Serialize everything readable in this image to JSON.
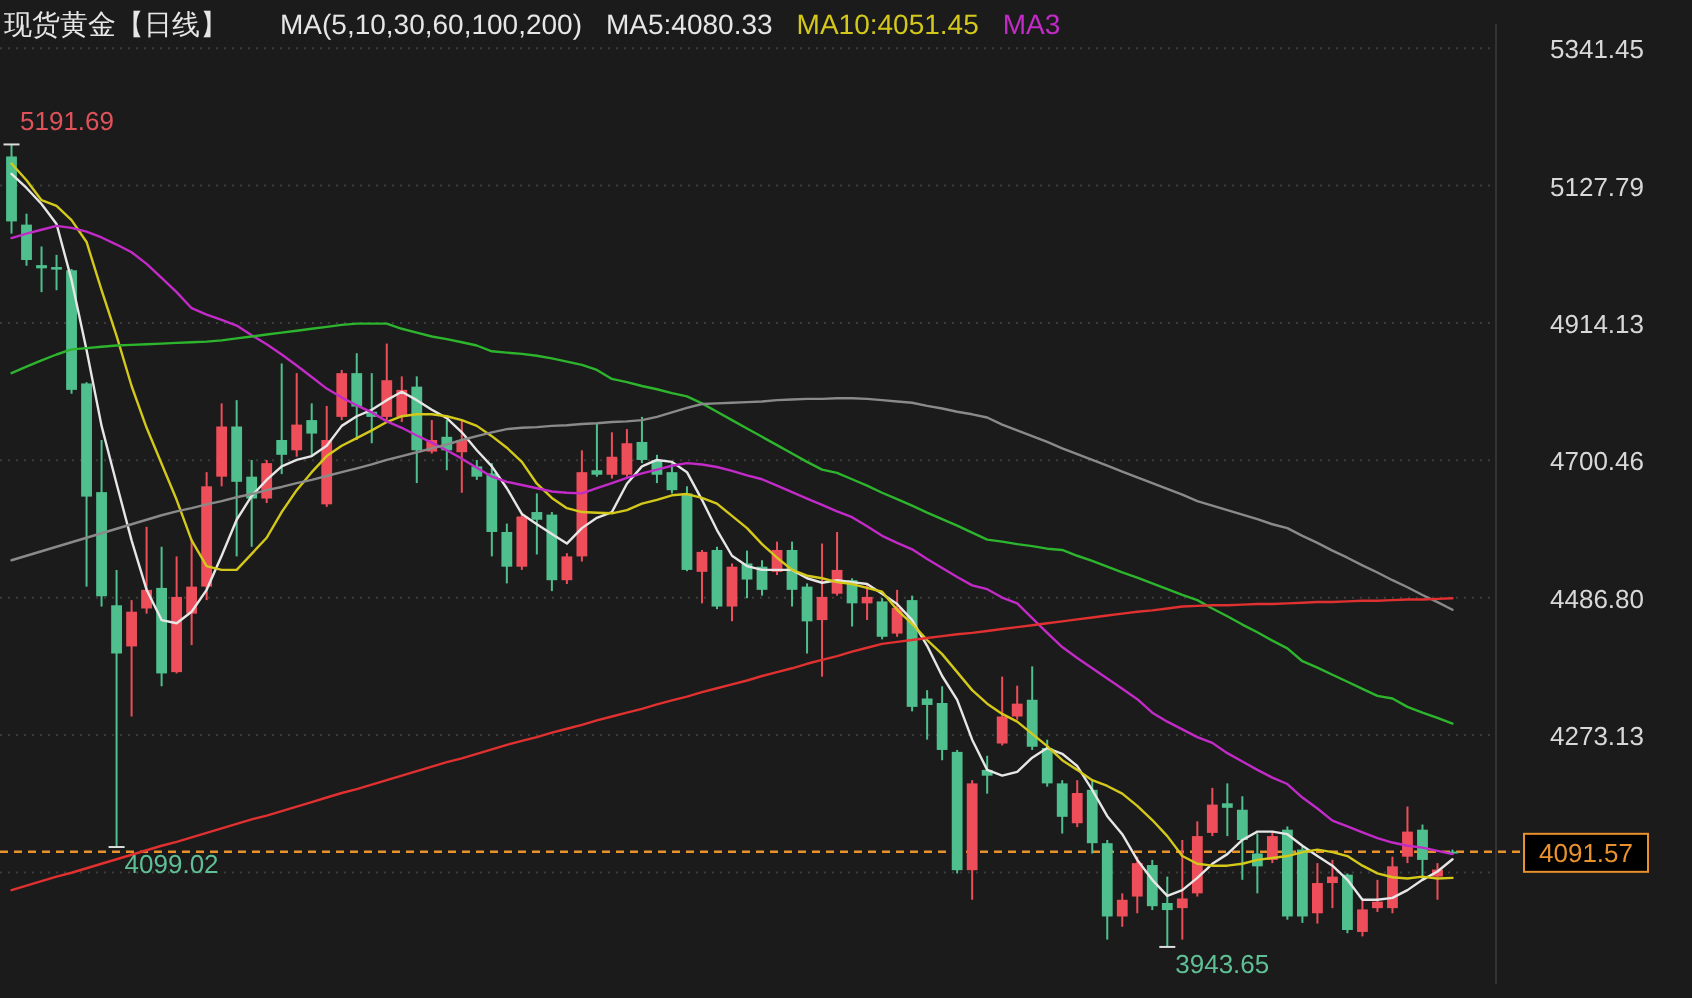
{
  "chart_data": {
    "type": "candlestick",
    "title": "现货黄金【日线】",
    "legend": "top",
    "grid": "y",
    "categories": [
      null,
      null,
      null,
      null,
      null,
      null,
      null,
      null,
      null,
      null,
      null,
      null,
      null,
      null,
      null,
      null,
      null,
      null,
      null,
      null,
      null,
      null,
      null,
      null,
      null,
      null,
      null,
      null,
      null,
      null,
      null,
      null,
      null,
      null,
      null,
      null,
      null,
      null,
      null,
      null,
      null,
      null,
      null,
      null,
      null,
      null,
      null,
      null,
      null,
      null,
      null,
      null,
      null,
      null,
      null,
      null,
      null,
      null,
      null,
      null,
      null,
      null,
      null,
      null,
      null,
      null,
      null,
      null,
      null,
      null,
      null,
      null,
      null,
      null,
      null,
      null,
      null,
      null,
      null,
      null,
      null,
      null,
      null,
      null,
      null,
      null,
      null,
      null,
      null,
      null,
      null,
      null,
      null,
      null,
      null,
      null,
      null
    ],
    "ylim": [
      3886,
      5379
    ],
    "yticks": [
      5341.45,
      5127.79,
      4914.13,
      4700.46,
      {
        "value": 4486.8,
        "label": "4486.80"
      },
      4273.13,
      {
        "value": 4059.47,
        "label": null
      }
    ],
    "ohlc": [
      [
        5173,
        5191.69,
        5053,
        5072
      ],
      [
        5067,
        5084,
        5003,
        5012
      ],
      [
        5004,
        5033,
        4962,
        4999
      ],
      [
        5001,
        5020,
        4965,
        4997
      ],
      [
        4996,
        4998,
        4804,
        4810
      ],
      [
        4820,
        4822,
        4504,
        4644
      ],
      [
        4651,
        4732,
        4473,
        4489
      ],
      [
        4475,
        4530,
        4099.02,
        4400
      ],
      [
        4411,
        4483,
        4302,
        4465
      ],
      [
        4470,
        4597,
        4462,
        4499
      ],
      [
        4502,
        4566,
        4349,
        4369
      ],
      [
        4371,
        4551,
        4369,
        4488
      ],
      [
        4462,
        4577,
        4413,
        4504
      ],
      [
        4504,
        4682,
        4483,
        4660
      ],
      [
        4675,
        4789,
        4660,
        4753
      ],
      [
        4753,
        4794,
        4551,
        4667
      ],
      [
        4675,
        4701,
        4566,
        4641
      ],
      [
        4641,
        4701,
        4634,
        4696
      ],
      [
        4732,
        4851,
        4679,
        4709
      ],
      [
        4716,
        4836,
        4706,
        4756
      ],
      [
        4763,
        4789,
        4706,
        4742
      ],
      [
        4632,
        4785,
        4628,
        4732
      ],
      [
        4768,
        4841,
        4763,
        4836
      ],
      [
        4836,
        4867,
        4732,
        4784
      ],
      [
        4776,
        4836,
        4727,
        4768
      ],
      [
        4768,
        4882,
        4763,
        4825
      ],
      [
        4768,
        4831,
        4760,
        4810
      ],
      [
        4815,
        4831,
        4665,
        4716
      ],
      [
        4714,
        4763,
        4711,
        4732
      ],
      [
        4737,
        4763,
        4685,
        4716
      ],
      [
        4713,
        4763,
        4650,
        4732
      ],
      [
        4691,
        4701,
        4670,
        4675
      ],
      [
        4680,
        4696,
        4551,
        4589
      ],
      [
        4589,
        4602,
        4509,
        4535
      ],
      [
        4535,
        4618,
        4530,
        4613
      ],
      [
        4620,
        4649,
        4554,
        4608
      ],
      [
        4616,
        4620,
        4497,
        4514
      ],
      [
        4514,
        4556,
        4508,
        4551
      ],
      [
        4551,
        4716,
        4543,
        4682
      ],
      [
        4685,
        4758,
        4675,
        4678
      ],
      [
        4678,
        4744,
        4672,
        4706
      ],
      [
        4678,
        4749,
        4675,
        4727
      ],
      [
        4729,
        4768,
        4696,
        4701
      ],
      [
        4701,
        4709,
        4665,
        4678
      ],
      [
        4682,
        4696,
        4649,
        4654
      ],
      [
        4649,
        4660,
        4528,
        4530
      ],
      [
        4527,
        4561,
        4478,
        4558
      ],
      [
        4561,
        4566,
        4469,
        4473
      ],
      [
        4473,
        4540,
        4450,
        4535
      ],
      [
        4540,
        4560,
        4486,
        4515
      ],
      [
        4535,
        4545,
        4490,
        4499
      ],
      [
        4527,
        4574,
        4522,
        4561
      ],
      [
        4561,
        4574,
        4473,
        4499
      ],
      [
        4504,
        4509,
        4400,
        4450
      ],
      [
        4452,
        4571,
        4364,
        4488
      ],
      [
        4493,
        4589,
        4490,
        4530
      ],
      [
        4514,
        4517,
        4442,
        4478
      ],
      [
        4478,
        4509,
        4452,
        4488
      ],
      [
        4481,
        4486,
        4422,
        4426
      ],
      [
        4431,
        4499,
        4426,
        4471
      ],
      [
        4483,
        4490,
        4310,
        4317
      ],
      [
        4330,
        4343,
        4266,
        4320
      ],
      [
        4323,
        4349,
        4234,
        4250
      ],
      [
        4247,
        4250,
        4058,
        4063
      ],
      [
        4063,
        4203,
        4017,
        4198
      ],
      [
        4219,
        4241,
        4182,
        4210
      ],
      [
        4260,
        4364,
        4257,
        4302
      ],
      [
        4302,
        4350,
        4297,
        4322
      ],
      [
        4328,
        4380,
        4250,
        4255
      ],
      [
        4253,
        4266,
        4193,
        4198
      ],
      [
        4198,
        4203,
        4120,
        4146
      ],
      [
        4136,
        4203,
        4130,
        4183
      ],
      [
        4188,
        4203,
        4089,
        4105
      ],
      [
        4105,
        4110,
        3955,
        3991
      ],
      [
        3991,
        4027,
        3975,
        4017
      ],
      [
        4022,
        4084,
        3996,
        4074
      ],
      [
        4071,
        4079,
        4001,
        4007
      ],
      [
        4012,
        4053,
        3943.65,
        4001
      ],
      [
        4004,
        4110,
        3955,
        4019
      ],
      [
        4027,
        4139,
        4022,
        4116
      ],
      [
        4121,
        4191,
        4116,
        4165
      ],
      [
        4167,
        4198,
        4116,
        4160
      ],
      [
        4157,
        4178,
        4048,
        4110
      ],
      [
        4089,
        4120,
        4027,
        4069
      ],
      [
        4079,
        4124,
        4074,
        4116
      ],
      [
        4126,
        4131,
        3986,
        3991
      ],
      [
        4095,
        4100,
        3981,
        3991
      ],
      [
        3996,
        4074,
        3980,
        4043
      ],
      [
        4043,
        4079,
        4004,
        4053
      ],
      [
        4056,
        4058,
        3965,
        3970
      ],
      [
        3967,
        4017,
        3960,
        4002
      ],
      [
        4004,
        4048,
        3998,
        4014
      ],
      [
        4004,
        4084,
        3996,
        4069
      ],
      [
        4084,
        4162,
        4074,
        4123
      ],
      [
        4126,
        4134,
        4048,
        4079
      ],
      [
        4053,
        4074,
        4017,
        4064
      ],
      [
        4092,
        4095,
        4088,
        4091.57
      ]
    ],
    "series": [
      {
        "type": "line",
        "name": "MA5:4080.33",
        "color": "#e6e6e6",
        "values": [
          5146,
          5124,
          5099,
          5068,
          4981,
          4872,
          4754,
          4664,
          4576,
          4499,
          4452,
          4447,
          4465,
          4499,
          4552,
          4608,
          4645,
          4670,
          4691,
          4701,
          4707,
          4723,
          4754,
          4769,
          4779,
          4794,
          4807,
          4794,
          4779,
          4766,
          4744,
          4716,
          4691,
          4657,
          4617,
          4601,
          4586,
          4571,
          4595,
          4611,
          4620,
          4664,
          4691,
          4701,
          4698,
          4682,
          4639,
          4592,
          4552,
          4536,
          4530,
          4530,
          4530,
          4517,
          4510,
          4514,
          4511,
          4508,
          4493,
          4477,
          4452,
          4412,
          4365,
          4328,
          4266,
          4219,
          4210,
          4216,
          4238,
          4253,
          4244,
          4225,
          4188,
          4147,
          4119,
          4079,
          4048,
          4023,
          4032,
          4051,
          4073,
          4088,
          4110,
          4123,
          4123,
          4119,
          4101,
          4085,
          4070,
          4048,
          4017,
          4017,
          4020,
          4032,
          4048,
          4061,
          4080
        ]
      },
      {
        "type": "line",
        "name": "MA10:4051.45",
        "color": "#d4c91a",
        "values": [
          5162,
          5136,
          5105,
          5096,
          5074,
          5040,
          4965,
          4894,
          4816,
          4751,
          4695,
          4639,
          4576,
          4536,
          4530,
          4530,
          4555,
          4580,
          4620,
          4654,
          4682,
          4707,
          4723,
          4735,
          4747,
          4760,
          4769,
          4772,
          4772,
          4769,
          4763,
          4754,
          4738,
          4720,
          4698,
          4664,
          4642,
          4626,
          4620,
          4619,
          4618,
          4623,
          4633,
          4639,
          4646,
          4648,
          4642,
          4633,
          4614,
          4595,
          4570,
          4549,
          4530,
          4521,
          4517,
          4511,
          4508,
          4502,
          4496,
          4468,
          4446,
          4421,
          4399,
          4371,
          4343,
          4322,
          4306,
          4294,
          4275,
          4256,
          4234,
          4219,
          4203,
          4194,
          4182,
          4163,
          4141,
          4116,
          4085,
          4073,
          4070,
          4070,
          4073,
          4079,
          4082,
          4085,
          4091,
          4095,
          4091,
          4085,
          4070,
          4058,
          4052,
          4050,
          4053,
          4050,
          4051
        ]
      },
      {
        "type": "line",
        "name": "MA3",
        "color": "#c22bc8",
        "values": [
          5046,
          5053,
          5059,
          5065,
          5062,
          5056,
          5047,
          5036,
          5024,
          5006,
          4984,
          4962,
          4937,
          4927,
          4919,
          4910,
          4895,
          4881,
          4865,
          4848,
          4830,
          4812,
          4798,
          4786,
          4775,
          4761,
          4751,
          4739,
          4728,
          4716,
          4703,
          4689,
          4675,
          4667,
          4662,
          4657,
          4652,
          4650,
          4649,
          4657,
          4665,
          4673,
          4680,
          4686,
          4692,
          4696,
          4694,
          4690,
          4684,
          4677,
          4671,
          4661,
          4651,
          4641,
          4631,
          4621,
          4612,
          4598,
          4583,
          4572,
          4562,
          4547,
          4533,
          4519,
          4506,
          4500,
          4487,
          4478,
          4455,
          4432,
          4410,
          4393,
          4377,
          4361,
          4345,
          4329,
          4308,
          4294,
          4282,
          4270,
          4261,
          4245,
          4232,
          4219,
          4207,
          4197,
          4176,
          4159,
          4140,
          4131,
          4122,
          4113,
          4106,
          4101,
          4098,
          4093,
          4088
        ]
      },
      {
        "type": "line",
        "color": "#2db52d",
        "values": [
          4836,
          4846,
          4856,
          4865,
          4873,
          4875,
          4877,
          4879,
          4880,
          4881,
          4882,
          4883,
          4884,
          4885,
          4887,
          4890,
          4893,
          4896,
          4899,
          4902,
          4905,
          4908,
          4911,
          4913,
          4913,
          4913,
          4905,
          4899,
          4893,
          4889,
          4884,
          4879,
          4870,
          4868,
          4866,
          4863,
          4859,
          4854,
          4849,
          4841,
          4827,
          4822,
          4816,
          4811,
          4805,
          4800,
          4789,
          4776,
          4763,
          4750,
          4737,
          4724,
          4711,
          4698,
          4686,
          4681,
          4671,
          4661,
          4650,
          4640,
          4630,
          4619,
          4609,
          4599,
          4588,
          4577,
          4574,
          4570,
          4567,
          4563,
          4561,
          4552,
          4544,
          4535,
          4526,
          4518,
          4509,
          4500,
          4491,
          4483,
          4470,
          4458,
          4445,
          4433,
          4420,
          4408,
          4388,
          4378,
          4367,
          4356,
          4345,
          4334,
          4330,
          4317,
          4308,
          4300,
          4291
        ]
      },
      {
        "type": "line",
        "color": "#8a8a8a",
        "values": [
          4545,
          4552,
          4559,
          4566,
          4573,
          4580,
          4587,
          4594,
          4601,
          4608,
          4615,
          4621,
          4626,
          4632,
          4637,
          4643,
          4648,
          4654,
          4659,
          4665,
          4670,
          4676,
          4682,
          4688,
          4694,
          4701,
          4707,
          4713,
          4719,
          4725,
          4732,
          4738,
          4744,
          4749,
          4751,
          4752,
          4754,
          4755,
          4757,
          4758,
          4760,
          4761,
          4763,
          4768,
          4775,
          4782,
          4788,
          4789,
          4790,
          4791,
          4792,
          4794,
          4795,
          4796,
          4796,
          4797,
          4797,
          4796,
          4794,
          4792,
          4790,
          4785,
          4781,
          4776,
          4772,
          4767,
          4756,
          4747,
          4738,
          4729,
          4719,
          4710,
          4701,
          4692,
          4683,
          4674,
          4665,
          4656,
          4647,
          4637,
          4630,
          4623,
          4616,
          4609,
          4601,
          4595,
          4583,
          4572,
          4560,
          4549,
          4537,
          4526,
          4514,
          4503,
          4491,
          4480,
          4468
        ]
      },
      {
        "type": "line",
        "color": "#e03030",
        "values": [
          4032,
          4039,
          4046,
          4053,
          4059,
          4066,
          4073,
          4080,
          4087,
          4094,
          4101,
          4107,
          4114,
          4121,
          4128,
          4135,
          4142,
          4148,
          4155,
          4162,
          4169,
          4176,
          4183,
          4189,
          4196,
          4203,
          4210,
          4217,
          4224,
          4231,
          4237,
          4244,
          4251,
          4258,
          4264,
          4270,
          4277,
          4283,
          4289,
          4296,
          4302,
          4308,
          4314,
          4321,
          4327,
          4333,
          4340,
          4346,
          4352,
          4358,
          4365,
          4371,
          4377,
          4384,
          4390,
          4396,
          4403,
          4409,
          4415,
          4418,
          4421,
          4424,
          4427,
          4430,
          4432,
          4435,
          4438,
          4441,
          4444,
          4447,
          4450,
          4453,
          4456,
          4459,
          4462,
          4465,
          4467,
          4470,
          4473,
          4474,
          4475,
          4475,
          4476,
          4477,
          4477,
          4478,
          4479,
          4480,
          4480,
          4481,
          4482,
          4482,
          4483,
          4484,
          4484,
          4485,
          4486
        ]
      }
    ],
    "ref_lines": [
      {
        "axis": "y",
        "value": 4091.57,
        "label": "4091.57",
        "color": "#e8912d",
        "line_style": "dashed"
      }
    ],
    "annotations": [
      "MA(5,10,30,60,100,200)",
      "5191.69",
      "4099.02",
      "3943.65"
    ]
  }
}
